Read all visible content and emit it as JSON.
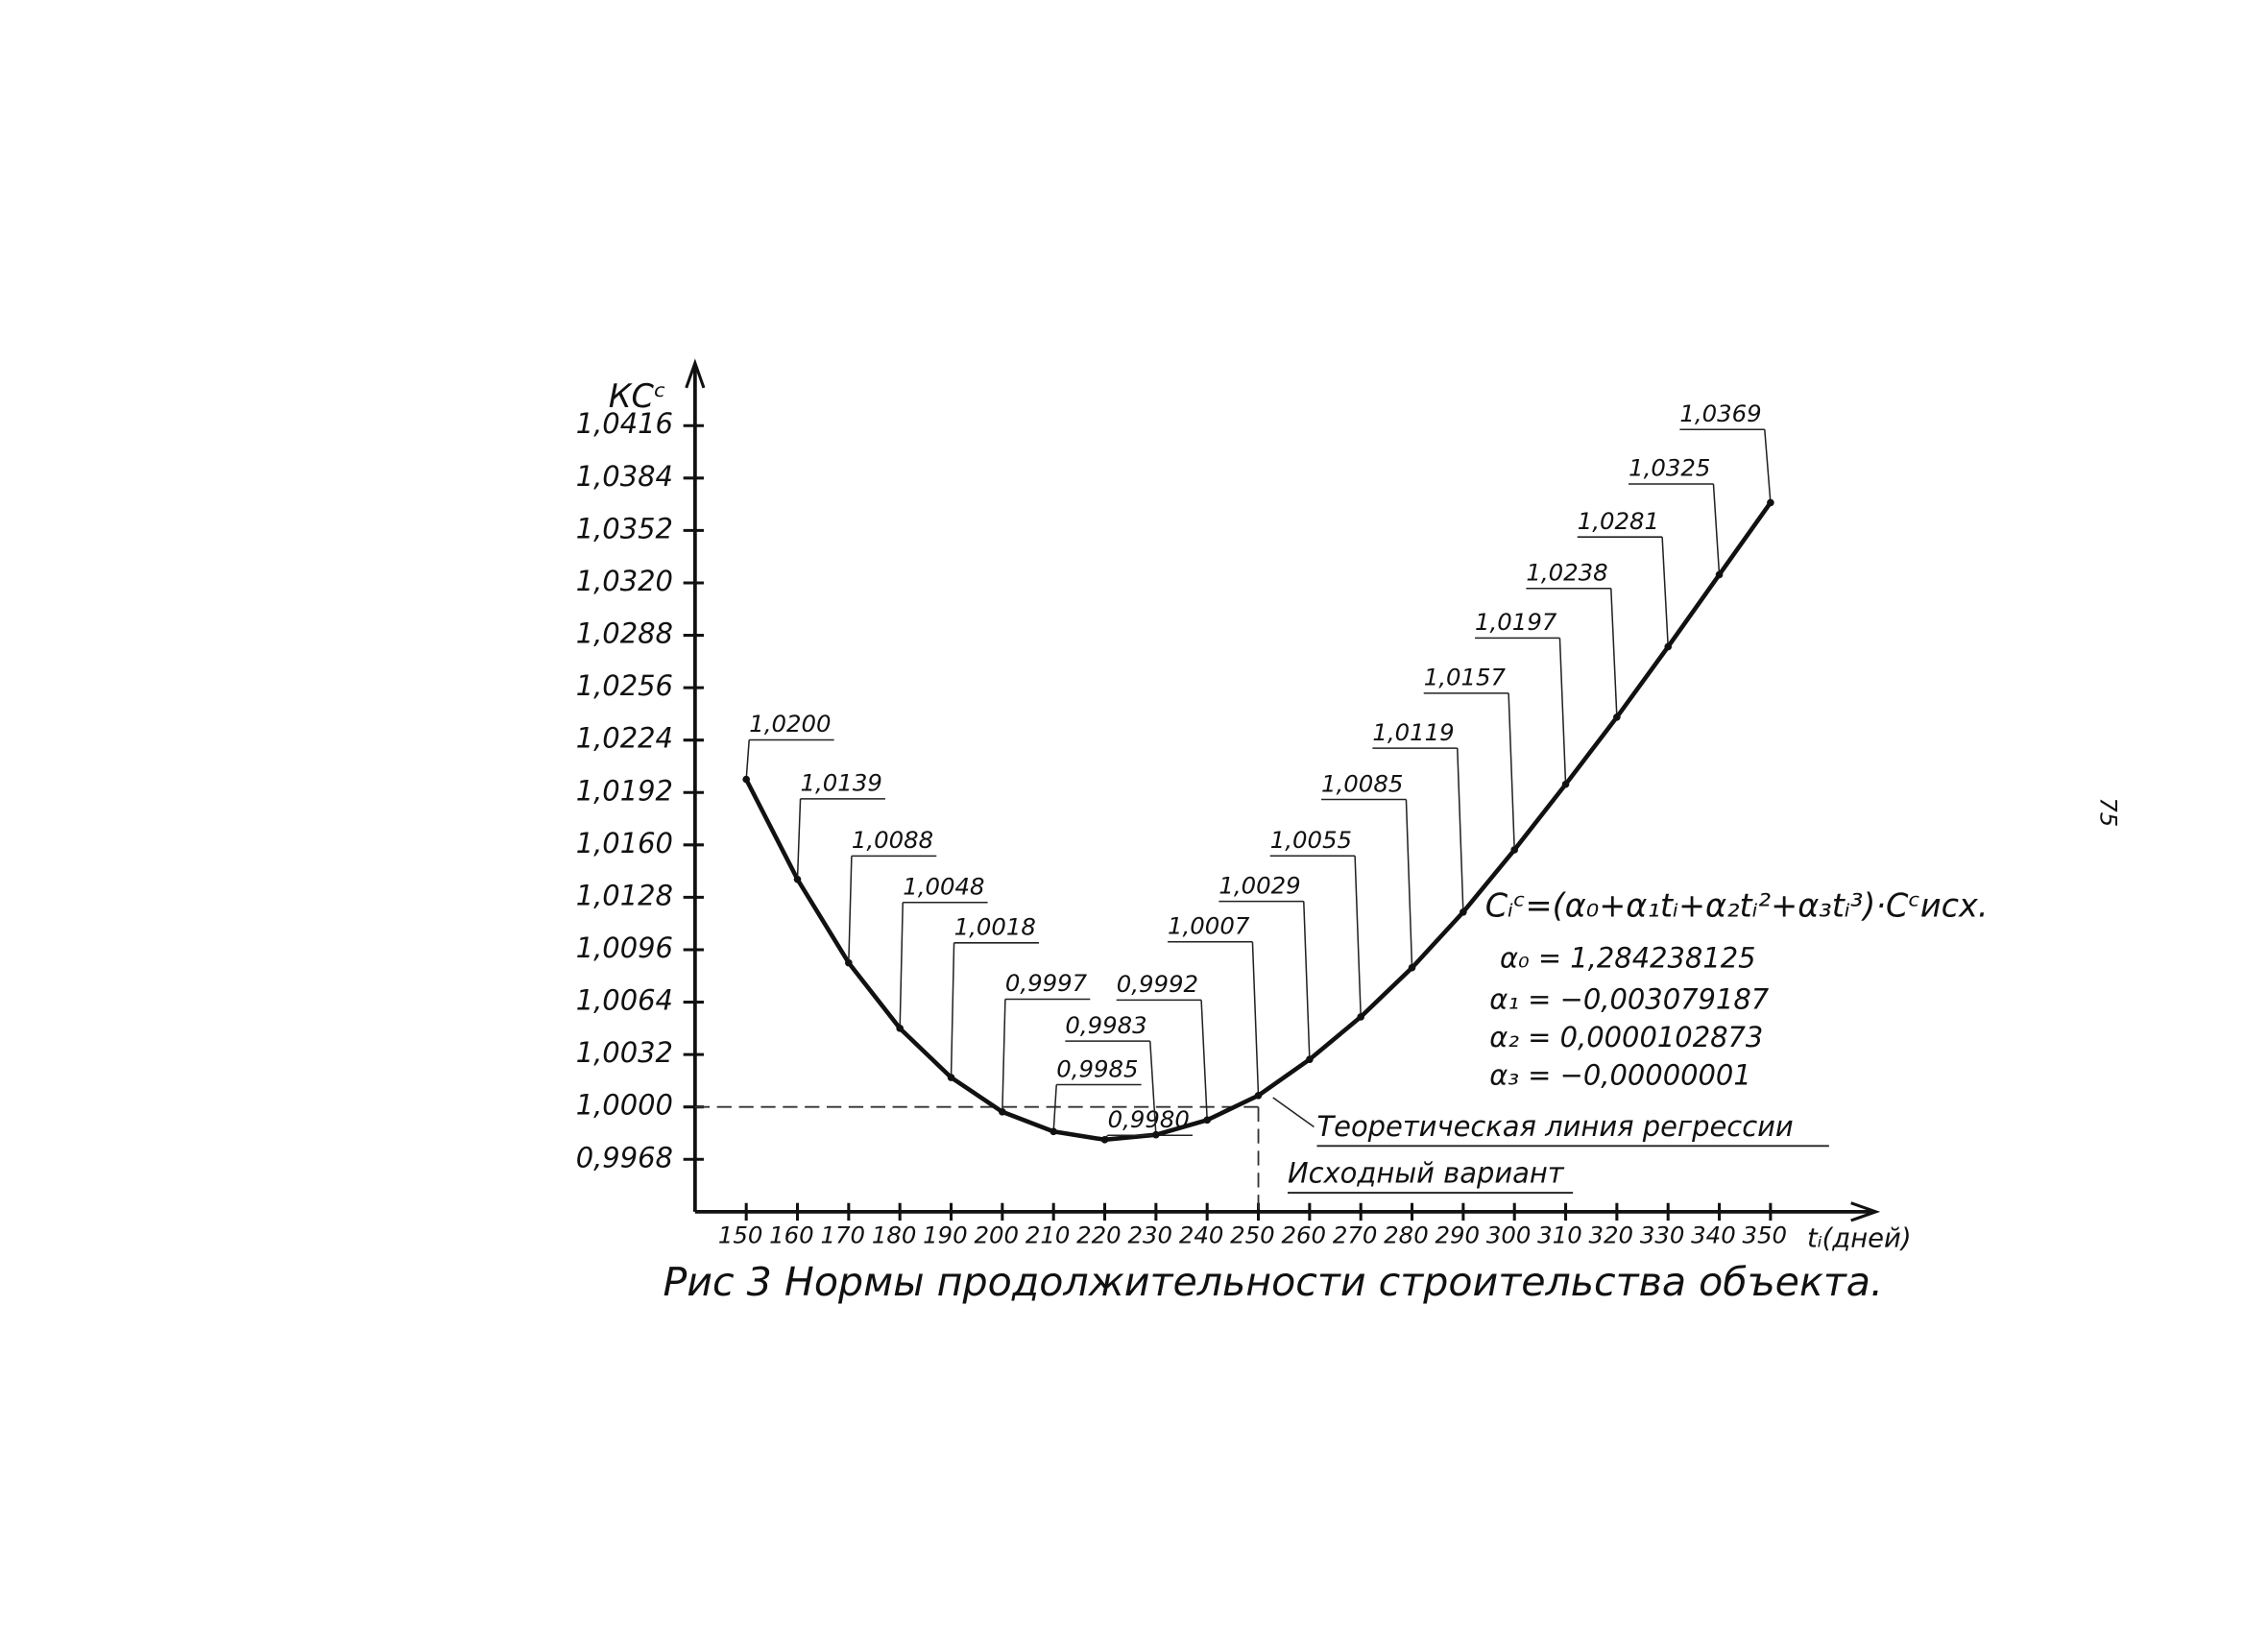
{
  "chart_data": {
    "type": "line",
    "y_label": "КСᶜ",
    "x_label": "tᵢ(дней)",
    "caption": "Рис 3 Нормы продолжительности строительства объекта.",
    "x": [
      150,
      160,
      170,
      180,
      190,
      200,
      210,
      220,
      230,
      240,
      250,
      260,
      270,
      280,
      290,
      300,
      310,
      320,
      330,
      340,
      350
    ],
    "values": [
      1.02,
      1.0139,
      1.0088,
      1.0048,
      1.0018,
      0.9997,
      0.9985,
      0.998,
      0.9983,
      0.9992,
      1.0007,
      1.0029,
      1.0055,
      1.0085,
      1.0119,
      1.0157,
      1.0197,
      1.0238,
      1.0281,
      1.0325,
      1.0369
    ],
    "value_labels": [
      "1,0200",
      "1,0139",
      "1,0088",
      "1,0048",
      "1,0018",
      "0,9997",
      "0,9985",
      "0,9980",
      "0,9983",
      "0,9992",
      "1,0007",
      "1,0029",
      "1,0055",
      "1,0085",
      "1,0119",
      "1,0157",
      "1,0197",
      "1,0238",
      "1,0281",
      "1,0325",
      "1,0369"
    ],
    "color": "#111111",
    "xlim": [
      140,
      370
    ],
    "ylim": [
      0.9936,
      1.0448
    ],
    "xticks": [
      150,
      160,
      170,
      180,
      190,
      200,
      210,
      220,
      230,
      240,
      250,
      260,
      270,
      280,
      290,
      300,
      310,
      320,
      330,
      340,
      350
    ],
    "yticks": [
      {
        "value": 0.9968,
        "label": "0,9968"
      },
      {
        "value": 1.0,
        "label": "1,0000"
      },
      {
        "value": 1.0032,
        "label": "1,0032"
      },
      {
        "value": 1.0064,
        "label": "1,0064"
      },
      {
        "value": 1.0096,
        "label": "1,0096"
      },
      {
        "value": 1.0128,
        "label": "1,0128"
      },
      {
        "value": 1.016,
        "label": "1,0160"
      },
      {
        "value": 1.0192,
        "label": "1,0192"
      },
      {
        "value": 1.0224,
        "label": "1,0224"
      },
      {
        "value": 1.0256,
        "label": "1,0256"
      },
      {
        "value": 1.0288,
        "label": "1,0288"
      },
      {
        "value": 1.032,
        "label": "1,0320"
      },
      {
        "value": 1.0352,
        "label": "1,0352"
      },
      {
        "value": 1.0384,
        "label": "1,0384"
      },
      {
        "value": 1.0416,
        "label": "1,0416"
      }
    ],
    "baseline": {
      "x": 250,
      "y": 1.0
    },
    "annotations": [
      "Cᵢᶜ=(α₀+α₁tᵢ+α₂tᵢ²+α₃tᵢ³)·Cᶜисх.",
      "α₀ = 1,284238125",
      "α₁ = −0,003079187",
      "α₂ = 0,0000102873",
      "α₃ = −0,00000001"
    ],
    "legend": [
      "Теоретическая линия регрессии",
      "Исходный вариант"
    ],
    "page_number": "75"
  }
}
